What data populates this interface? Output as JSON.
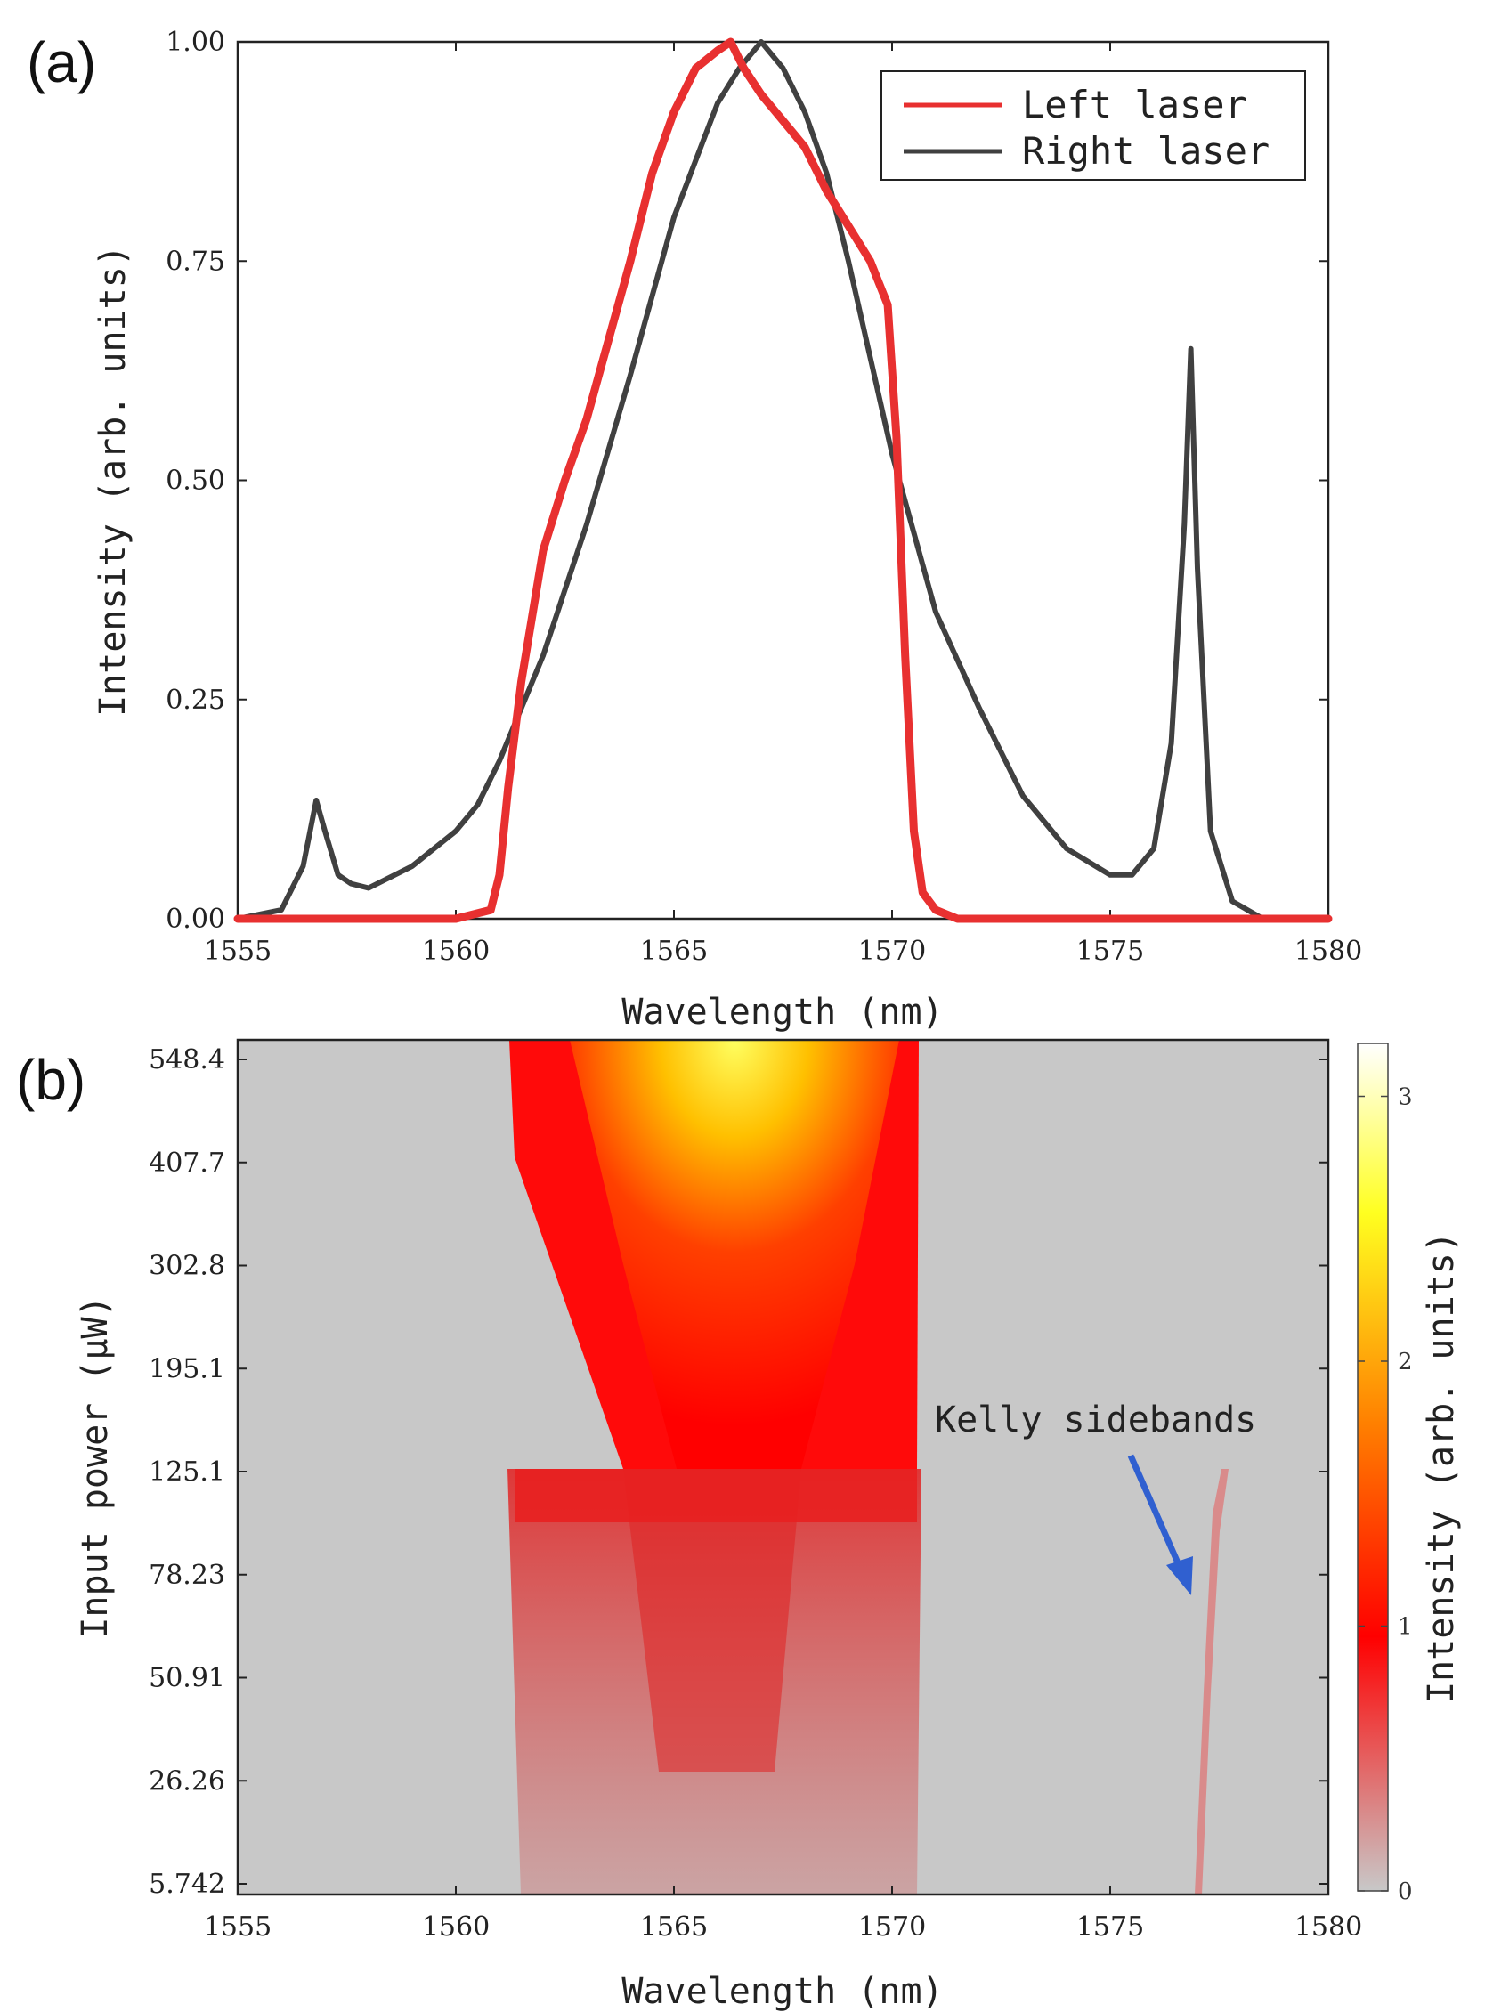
{
  "chart_data": [
    {
      "panel_label": "(a)",
      "type": "line",
      "xlabel": "Wavelength (nm)",
      "ylabel": "Intensity (arb. units)",
      "xlim": [
        1555,
        1580
      ],
      "ylim": [
        0,
        1
      ],
      "x_ticks": [
        "1555",
        "1560",
        "1565",
        "1570",
        "1575",
        "1580"
      ],
      "y_ticks": [
        "0.00",
        "0.25",
        "0.50",
        "0.75",
        "1.00"
      ],
      "legend_position": "top-right",
      "series": [
        {
          "name": "Left laser",
          "color": "#e83030",
          "x": [
            1555,
            1560,
            1560.8,
            1561.0,
            1561.2,
            1561.5,
            1562,
            1562.5,
            1563,
            1563.5,
            1564,
            1564.5,
            1565,
            1565.5,
            1566,
            1566.3,
            1566.6,
            1567,
            1567.5,
            1568,
            1568.5,
            1569,
            1569.5,
            1569.9,
            1570.1,
            1570.3,
            1570.5,
            1570.7,
            1571.0,
            1571.5,
            1580
          ],
          "y": [
            0,
            0,
            0.01,
            0.05,
            0.15,
            0.27,
            0.42,
            0.5,
            0.57,
            0.66,
            0.75,
            0.85,
            0.92,
            0.97,
            0.99,
            1.0,
            0.97,
            0.94,
            0.91,
            0.88,
            0.83,
            0.79,
            0.75,
            0.7,
            0.55,
            0.3,
            0.1,
            0.03,
            0.01,
            0,
            0
          ]
        },
        {
          "name": "Right laser",
          "color": "#404040",
          "x": [
            1555,
            1556,
            1556.5,
            1556.8,
            1557.0,
            1557.3,
            1557.6,
            1558,
            1559,
            1560,
            1560.5,
            1561,
            1562,
            1563,
            1564,
            1565,
            1566,
            1566.5,
            1567,
            1567.5,
            1568,
            1568.5,
            1569,
            1569.5,
            1570,
            1571,
            1572,
            1573,
            1574,
            1575,
            1575.5,
            1576,
            1576.4,
            1576.7,
            1576.85,
            1577.0,
            1577.3,
            1577.8,
            1578.5,
            1580
          ],
          "y": [
            0,
            0.01,
            0.06,
            0.135,
            0.1,
            0.05,
            0.04,
            0.035,
            0.06,
            0.1,
            0.13,
            0.18,
            0.3,
            0.45,
            0.62,
            0.8,
            0.93,
            0.97,
            1.0,
            0.97,
            0.92,
            0.85,
            0.75,
            0.64,
            0.53,
            0.35,
            0.24,
            0.14,
            0.08,
            0.05,
            0.05,
            0.08,
            0.2,
            0.45,
            0.65,
            0.4,
            0.1,
            0.02,
            0,
            0
          ]
        }
      ]
    },
    {
      "panel_label": "(b)",
      "type": "heatmap",
      "xlabel": "Wavelength (nm)",
      "ylabel": "Input power (μW)",
      "xlim": [
        1555,
        1580
      ],
      "x_ticks": [
        "1555",
        "1560",
        "1565",
        "1570",
        "1575",
        "1580"
      ],
      "y_ticks": [
        "5.742",
        "26.26",
        "50.91",
        "78.23",
        "125.1",
        "195.1",
        "302.8",
        "407.7",
        "548.4"
      ],
      "colorbar": {
        "label": "Intensity (arb. units)",
        "range": [
          0,
          3.2
        ],
        "ticks": [
          "0",
          "1",
          "2",
          "3"
        ],
        "colors": [
          "#c8c8c8",
          "#ff0000",
          "#ff8c00",
          "#ffff20",
          "#ffffff"
        ]
      },
      "band_description": "Spectral band spanning about 1561–1570.5 nm; intensity peaks near 1566.5 nm and rises with input power; a faint tilted Kelly sideband trace near 1577 nm",
      "annotation": "Kelly sidebands"
    }
  ]
}
